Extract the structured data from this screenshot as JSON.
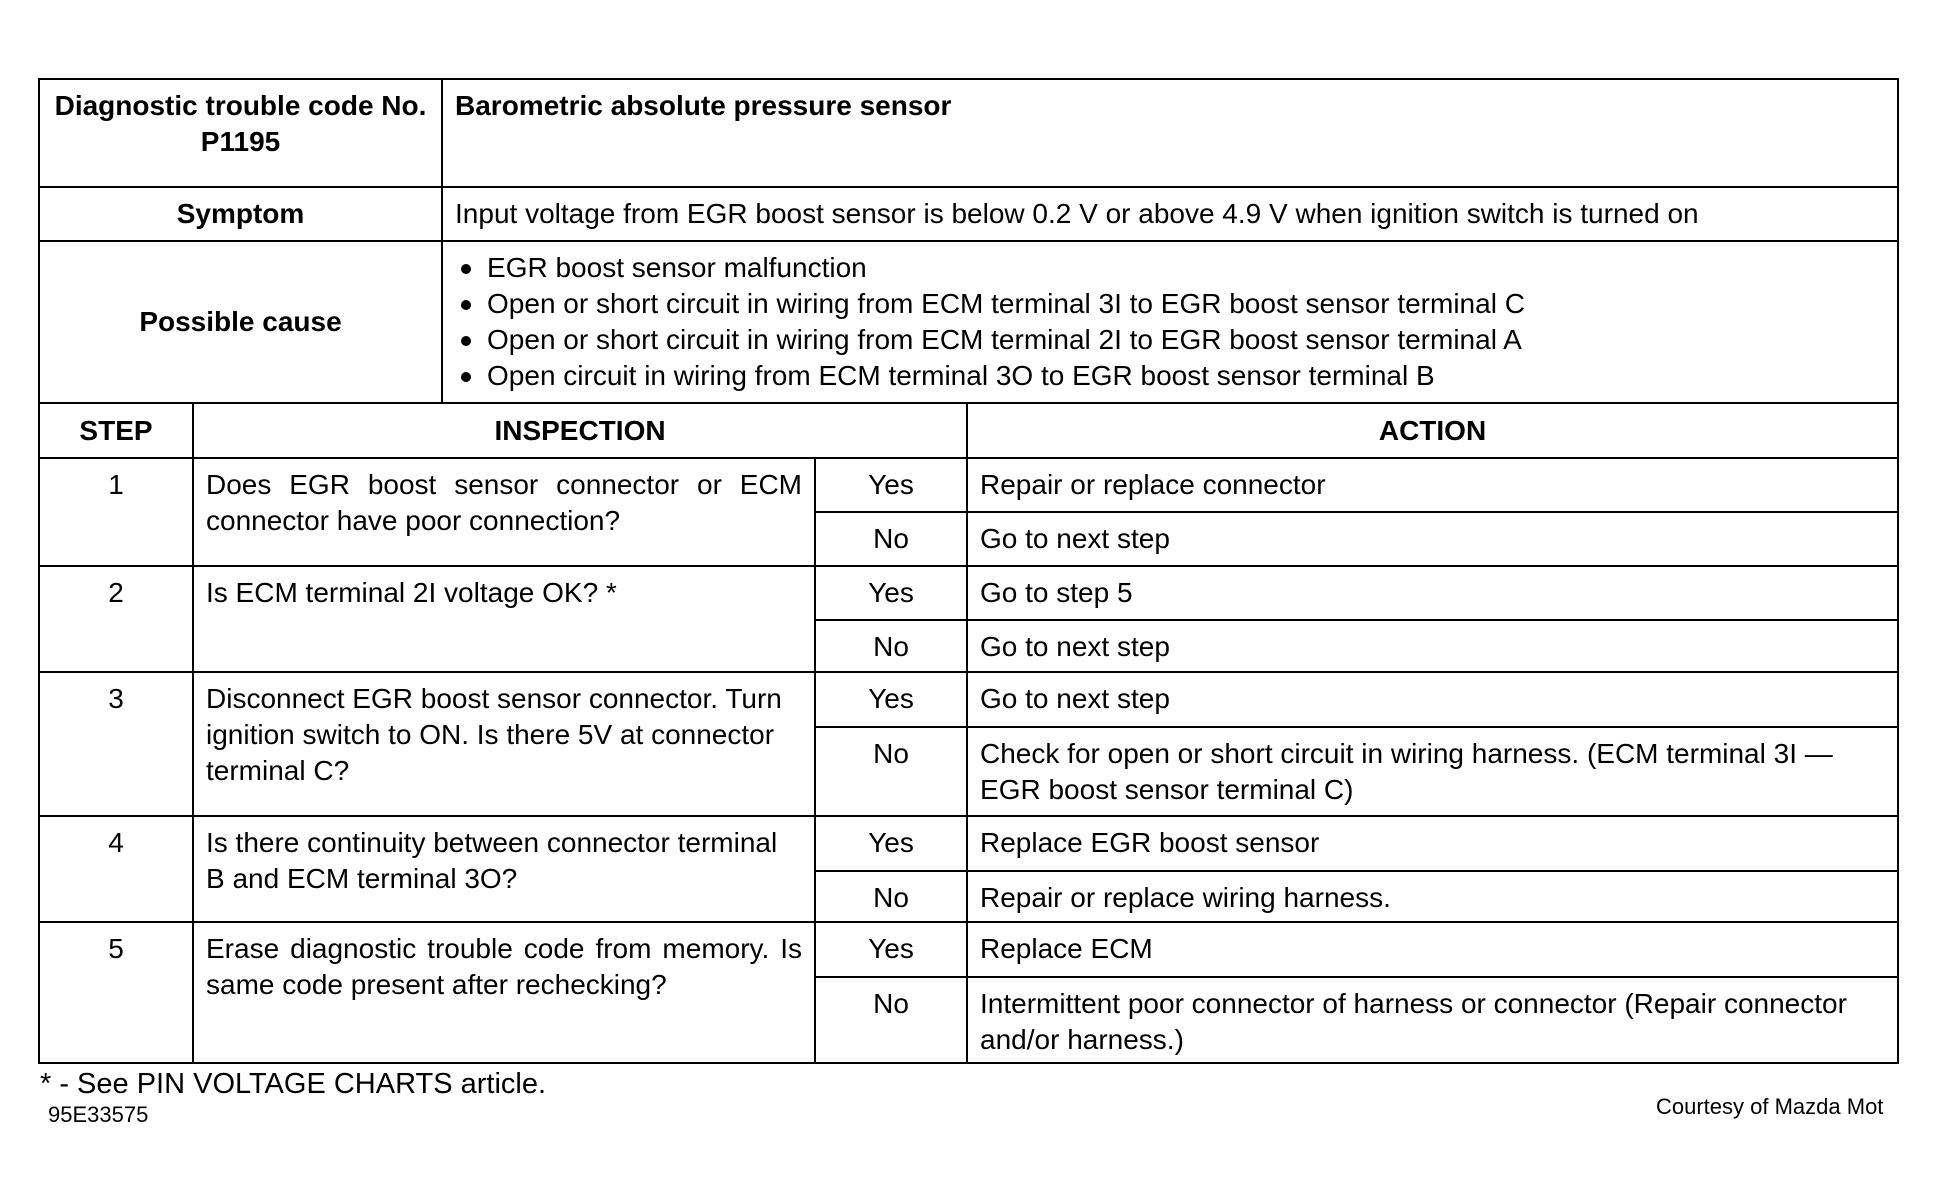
{
  "header": {
    "code_label": "Diagnostic trouble code No. P1195",
    "title": "Barometric absolute pressure sensor"
  },
  "symptom": {
    "label": "Symptom",
    "text": "Input voltage from EGR boost sensor is below 0.2 V or above 4.9 V when ignition switch is turned on"
  },
  "cause": {
    "label": "Possible cause",
    "items": [
      "EGR boost sensor malfunction",
      "Open or short circuit in wiring from ECM terminal 3I to EGR boost sensor terminal C",
      "Open or short circuit in wiring from ECM terminal 2I to EGR boost sensor terminal A",
      "Open circuit in wiring from ECM terminal 3O to EGR boost sensor terminal B"
    ]
  },
  "columns": {
    "step": "STEP",
    "inspection": "INSPECTION",
    "action": "ACTION"
  },
  "steps": [
    {
      "num": "1",
      "inspection": "Does EGR boost sensor connector or ECM connector have poor connection?",
      "yes": "Yes",
      "yes_action": "Repair or replace connector",
      "no": "No",
      "no_action": "Go to next step"
    },
    {
      "num": "2",
      "inspection": "Is ECM terminal 2I voltage OK? *",
      "yes": "Yes",
      "yes_action": "Go to step 5",
      "no": "No",
      "no_action": "Go to next step"
    },
    {
      "num": "3",
      "inspection": "Disconnect EGR boost sensor connector. Turn ignition switch to ON. Is there 5V at connector terminal C?",
      "yes": "Yes",
      "yes_action": "Go to next step",
      "no": "No",
      "no_action": "Check for open or short circuit in wiring harness. (ECM terminal 3I — EGR boost sensor terminal C)"
    },
    {
      "num": "4",
      "inspection": "Is there continuity between connector terminal B and ECM terminal 3O?",
      "yes": "Yes",
      "yes_action": "Replace EGR boost sensor",
      "no": "No",
      "no_action": "Repair or replace wiring harness."
    },
    {
      "num": "5",
      "inspection": "Erase diagnostic trouble code from memory. Is same code present after rechecking?",
      "yes": "Yes",
      "yes_action": "Replace ECM",
      "no": "No",
      "no_action": "Intermittent poor connector of harness or connector (Repair connector and/or harness.)"
    }
  ],
  "footer": {
    "note": "* - See PIN VOLTAGE CHARTS article.",
    "figure_id": "95E33575",
    "credit": "Courtesy of Mazda Mot"
  }
}
